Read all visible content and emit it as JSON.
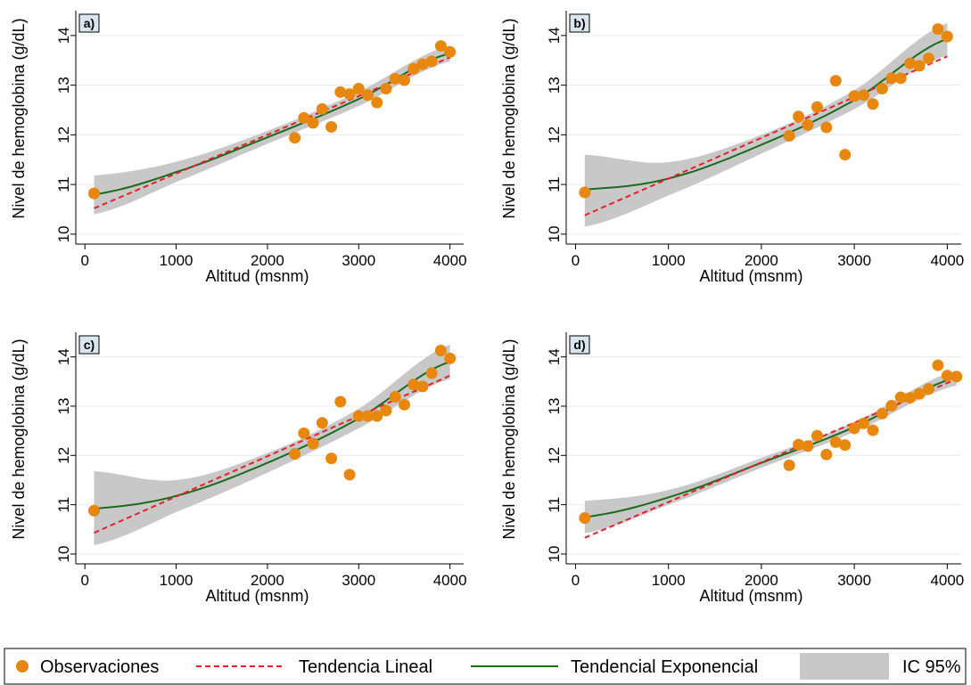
{
  "legend": {
    "items": [
      {
        "kind": "marker",
        "label": "Observaciones",
        "color": "#E8870E"
      },
      {
        "kind": "dashed-line",
        "label": "Tendencia Lineal",
        "color": "#E8202A"
      },
      {
        "kind": "solid-line",
        "label": "Tendencial Exponencial",
        "color": "#1A6B1A"
      },
      {
        "kind": "band",
        "label": "IC 95%",
        "color": "#C8C8C8"
      }
    ]
  },
  "chart_data": [
    {
      "type": "scatter",
      "panel_label": "a)",
      "xlabel": "Altitud (msnm)",
      "ylabel": "Nivel de hemoglobina (g/dL)",
      "xlim": [
        -100,
        4150
      ],
      "ylim": [
        9.8,
        14.5
      ],
      "xticks": [
        "0",
        "1000",
        "2000",
        "3000",
        "4000"
      ],
      "yticks": [
        "10",
        "11",
        "12",
        "13",
        "14"
      ],
      "grid": "horizontal",
      "series": [
        {
          "name": "Observaciones",
          "x": [
            100,
            2300,
            2400,
            2500,
            2600,
            2700,
            2800,
            2900,
            3000,
            3100,
            3200,
            3300,
            3400,
            3500,
            3600,
            3700,
            3800,
            3900,
            4000
          ],
          "y": [
            10.82,
            11.94,
            12.34,
            12.24,
            12.52,
            12.16,
            12.86,
            12.82,
            12.93,
            12.8,
            12.65,
            12.93,
            13.13,
            13.1,
            13.33,
            13.42,
            13.48,
            13.79,
            13.67
          ]
        },
        {
          "name": "Tendencia Lineal",
          "x": [
            100,
            4000
          ],
          "y": [
            10.52,
            13.56
          ]
        },
        {
          "name": "Tendencial Exponencial",
          "x": [
            100,
            1000,
            2000,
            3000,
            4000
          ],
          "y": [
            10.8,
            11.25,
            11.95,
            12.72,
            13.64
          ]
        },
        {
          "name": "IC 95%",
          "x": [
            100,
            1000,
            2000,
            3000,
            4000
          ],
          "lower": [
            10.4,
            11.05,
            11.82,
            12.58,
            13.48
          ],
          "upper": [
            11.18,
            11.46,
            12.08,
            12.87,
            13.8
          ]
        }
      ]
    },
    {
      "type": "scatter",
      "panel_label": "b)",
      "xlabel": "Altitud (msnm)",
      "ylabel": "Nivel de hemoglobina (g/dL)",
      "xlim": [
        -100,
        4150
      ],
      "ylim": [
        9.8,
        14.5
      ],
      "xticks": [
        "0",
        "1000",
        "2000",
        "3000",
        "4000"
      ],
      "yticks": [
        "10",
        "11",
        "12",
        "13",
        "14"
      ],
      "grid": "horizontal",
      "series": [
        {
          "name": "Observaciones",
          "x": [
            100,
            2300,
            2400,
            2500,
            2600,
            2700,
            2800,
            2900,
            3000,
            3100,
            3200,
            3300,
            3400,
            3500,
            3600,
            3700,
            3800,
            3900,
            4000
          ],
          "y": [
            10.84,
            11.98,
            12.37,
            12.2,
            12.56,
            12.15,
            13.09,
            11.6,
            12.78,
            12.8,
            12.62,
            12.93,
            13.14,
            13.14,
            13.44,
            13.39,
            13.54,
            14.13,
            13.98
          ]
        },
        {
          "name": "Tendencia Lineal",
          "x": [
            100,
            4000
          ],
          "y": [
            10.38,
            13.58
          ]
        },
        {
          "name": "Tendencial Exponencial",
          "x": [
            100,
            1000,
            2000,
            3000,
            4000
          ],
          "y": [
            10.9,
            11.12,
            11.8,
            12.7,
            13.93
          ]
        },
        {
          "name": "IC 95%",
          "x": [
            100,
            1000,
            2000,
            3000,
            4000
          ],
          "lower": [
            10.15,
            10.78,
            11.62,
            12.52,
            13.6
          ],
          "upper": [
            11.6,
            11.45,
            12.0,
            12.9,
            14.25
          ]
        }
      ]
    },
    {
      "type": "scatter",
      "panel_label": "c)",
      "xlabel": "Altitud (msnm)",
      "ylabel": "Nivel de hemoglobina (g/dL)",
      "xlim": [
        -100,
        4150
      ],
      "ylim": [
        9.8,
        14.5
      ],
      "xticks": [
        "0",
        "1000",
        "2000",
        "3000",
        "4000"
      ],
      "yticks": [
        "10",
        "11",
        "12",
        "13",
        "14"
      ],
      "grid": "horizontal",
      "series": [
        {
          "name": "Observaciones",
          "x": [
            100,
            2300,
            2400,
            2500,
            2600,
            2700,
            2800,
            2900,
            3000,
            3100,
            3200,
            3300,
            3400,
            3500,
            3600,
            3700,
            3800,
            3900,
            4000
          ],
          "y": [
            10.88,
            12.03,
            12.45,
            12.24,
            12.66,
            11.94,
            13.09,
            11.61,
            12.8,
            12.8,
            12.8,
            12.91,
            13.19,
            13.03,
            13.44,
            13.4,
            13.67,
            14.13,
            13.97
          ]
        },
        {
          "name": "Tendencia Lineal",
          "x": [
            100,
            4000
          ],
          "y": [
            10.43,
            13.62
          ]
        },
        {
          "name": "Tendencial Exponencial",
          "x": [
            100,
            1000,
            2000,
            3000,
            4000
          ],
          "y": [
            10.92,
            11.18,
            11.85,
            12.75,
            13.9
          ]
        },
        {
          "name": "IC 95%",
          "x": [
            100,
            1000,
            2000,
            3000,
            4000
          ],
          "lower": [
            10.18,
            10.85,
            11.65,
            12.55,
            13.55
          ],
          "upper": [
            11.68,
            11.5,
            12.05,
            12.95,
            14.25
          ]
        }
      ]
    },
    {
      "type": "scatter",
      "panel_label": "d)",
      "xlabel": "Altitud (msnm)",
      "ylabel": "Nivel de hemoglobina (g/dL)",
      "xlim": [
        -100,
        4150
      ],
      "ylim": [
        9.8,
        14.5
      ],
      "xticks": [
        "0",
        "1000",
        "2000",
        "3000",
        "4000"
      ],
      "yticks": [
        "10",
        "11",
        "12",
        "13",
        "14"
      ],
      "grid": "horizontal",
      "series": [
        {
          "name": "Observaciones",
          "x": [
            100,
            2300,
            2400,
            2500,
            2600,
            2700,
            2800,
            2900,
            3000,
            3100,
            3200,
            3300,
            3400,
            3500,
            3600,
            3700,
            3800,
            3900,
            4000,
            4100
          ],
          "y": [
            10.73,
            11.8,
            12.22,
            12.19,
            12.4,
            12.02,
            12.27,
            12.21,
            12.55,
            12.65,
            12.51,
            12.85,
            13.01,
            13.18,
            13.17,
            13.25,
            13.35,
            13.83,
            13.62,
            13.6
          ]
        },
        {
          "name": "Tendencia Lineal",
          "x": [
            100,
            4100
          ],
          "y": [
            10.33,
            13.55
          ]
        },
        {
          "name": "Tendencial Exponencial",
          "x": [
            100,
            1000,
            2000,
            3000,
            4100
          ],
          "y": [
            10.75,
            11.15,
            11.85,
            12.58,
            13.58
          ]
        },
        {
          "name": "IC 95%",
          "x": [
            100,
            1000,
            2000,
            3000,
            4100
          ],
          "lower": [
            10.42,
            11.0,
            11.75,
            12.48,
            13.42
          ],
          "upper": [
            11.08,
            11.3,
            11.95,
            12.68,
            13.72
          ]
        }
      ]
    }
  ]
}
